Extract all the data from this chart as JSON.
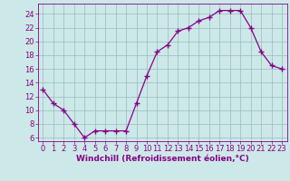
{
  "x": [
    0,
    1,
    2,
    3,
    4,
    5,
    6,
    7,
    8,
    9,
    10,
    11,
    12,
    13,
    14,
    15,
    16,
    17,
    18,
    19,
    20,
    21,
    22,
    23
  ],
  "y": [
    13,
    11,
    10,
    8,
    6,
    7,
    7,
    7,
    7,
    11,
    15,
    18.5,
    19.5,
    21.5,
    22,
    23,
    23.5,
    24.5,
    24.5,
    24.5,
    22,
    18.5,
    16.5,
    16
  ],
  "line_color": "#880088",
  "marker": "+",
  "bg_color": "#cce8e8",
  "grid_color": "#99bbbb",
  "xlabel": "Windchill (Refroidissement éolien,°C)",
  "xlim": [
    -0.5,
    23.5
  ],
  "ylim": [
    5.5,
    25.5
  ],
  "yticks": [
    6,
    8,
    10,
    12,
    14,
    16,
    18,
    20,
    22,
    24
  ],
  "xticks": [
    0,
    1,
    2,
    3,
    4,
    5,
    6,
    7,
    8,
    9,
    10,
    11,
    12,
    13,
    14,
    15,
    16,
    17,
    18,
    19,
    20,
    21,
    22,
    23
  ],
  "axis_color": "#880088",
  "tick_fontsize": 6.0,
  "xlabel_fontsize": 6.5,
  "marker_size": 4,
  "linewidth": 0.9
}
